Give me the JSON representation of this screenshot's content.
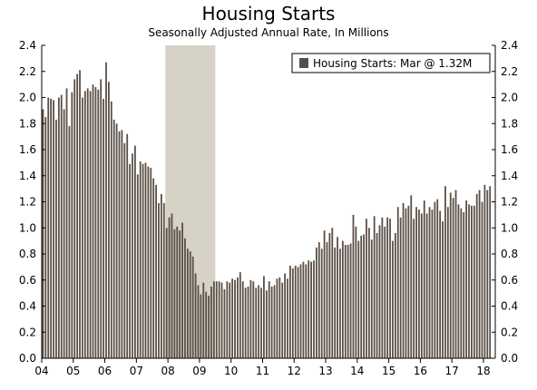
{
  "chart_data": {
    "type": "bar",
    "title": "Housing Starts",
    "subtitle": "Seasonally Adjusted Annual Rate, In Millions",
    "legend": {
      "label": "Housing Starts: Mar @ 1.32M",
      "placement": "top-right"
    },
    "ylim": [
      0,
      2.4
    ],
    "yticks": [
      "0.0",
      "0.2",
      "0.4",
      "0.6",
      "0.8",
      "1.0",
      "1.2",
      "1.4",
      "1.6",
      "1.8",
      "2.0",
      "2.2",
      "2.4"
    ],
    "xticks": [
      "04",
      "05",
      "06",
      "07",
      "08",
      "09",
      "10",
      "11",
      "12",
      "13",
      "14",
      "15",
      "16",
      "17",
      "18"
    ],
    "x_start": "2004-01",
    "recession": {
      "start": "2007-12",
      "end": "2009-06"
    },
    "colors": {
      "bar": "#5b4f45",
      "recession": "#d6d2c6",
      "axis": "#000000"
    },
    "series": [
      {
        "name": "Housing Starts",
        "values": [
          1.91,
          1.85,
          2.0,
          1.99,
          1.98,
          1.83,
          2.0,
          2.02,
          1.91,
          2.07,
          1.78,
          2.04,
          2.14,
          2.18,
          2.21,
          2.0,
          2.05,
          2.07,
          2.05,
          2.1,
          2.08,
          2.06,
          2.14,
          1.99,
          2.27,
          2.12,
          1.97,
          1.83,
          1.8,
          1.74,
          1.75,
          1.65,
          1.72,
          1.49,
          1.57,
          1.63,
          1.41,
          1.51,
          1.49,
          1.5,
          1.47,
          1.46,
          1.38,
          1.33,
          1.19,
          1.26,
          1.19,
          1.0,
          1.08,
          1.11,
          0.99,
          1.01,
          0.98,
          1.04,
          0.92,
          0.84,
          0.82,
          0.78,
          0.65,
          0.56,
          0.49,
          0.58,
          0.51,
          0.48,
          0.55,
          0.59,
          0.59,
          0.59,
          0.58,
          0.53,
          0.59,
          0.58,
          0.61,
          0.6,
          0.62,
          0.66,
          0.59,
          0.54,
          0.55,
          0.6,
          0.59,
          0.54,
          0.56,
          0.54,
          0.63,
          0.52,
          0.59,
          0.55,
          0.56,
          0.61,
          0.62,
          0.58,
          0.65,
          0.61,
          0.71,
          0.69,
          0.71,
          0.7,
          0.72,
          0.74,
          0.72,
          0.75,
          0.74,
          0.75,
          0.85,
          0.89,
          0.84,
          0.98,
          0.89,
          0.96,
          1.0,
          0.85,
          0.93,
          0.84,
          0.9,
          0.87,
          0.87,
          0.88,
          1.1,
          1.01,
          0.9,
          0.94,
          0.95,
          1.07,
          1.0,
          0.91,
          1.09,
          0.96,
          1.02,
          1.08,
          1.01,
          1.08,
          1.07,
          0.9,
          0.96,
          1.16,
          1.08,
          1.19,
          1.15,
          1.17,
          1.25,
          1.07,
          1.16,
          1.14,
          1.11,
          1.21,
          1.11,
          1.16,
          1.14,
          1.2,
          1.22,
          1.13,
          1.05,
          1.32,
          1.16,
          1.27,
          1.23,
          1.29,
          1.18,
          1.15,
          1.12,
          1.21,
          1.18,
          1.17,
          1.17,
          1.26,
          1.29,
          1.2,
          1.33,
          1.29,
          1.32
        ]
      }
    ]
  }
}
